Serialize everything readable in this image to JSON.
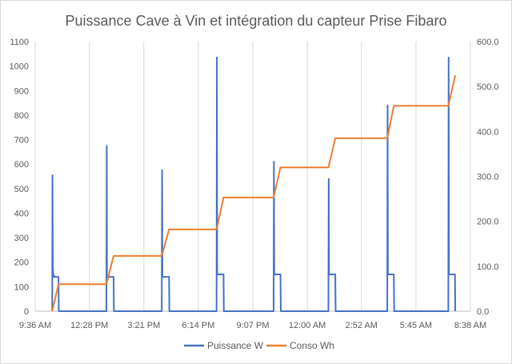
{
  "chart_data": {
    "type": "line",
    "title": "Puissance Cave à Vin et intégration du capteur Prise Fibaro",
    "x_ticks": [
      "9:36 AM",
      "12:28 PM",
      "3:21 PM",
      "6:14 PM",
      "9:07 PM",
      "12:00 AM",
      "2:52 AM",
      "5:45 AM",
      "8:38 AM"
    ],
    "x_range": [
      "9:36 AM",
      "8:38 AM"
    ],
    "y_left": {
      "ticks": [
        "0",
        "100",
        "200",
        "300",
        "400",
        "500",
        "600",
        "700",
        "800",
        "900",
        "1000",
        "1100"
      ],
      "range": [
        0,
        1100
      ]
    },
    "y_right": {
      "ticks": [
        "0.0",
        "100.0",
        "200.0",
        "300.0",
        "400.0",
        "500.0",
        "600.0"
      ],
      "range": [
        0,
        600
      ]
    },
    "grid": "vertical",
    "legend_position": "bottom",
    "series": [
      {
        "name": "Puissance W",
        "axis": "left",
        "color": "#4472C4",
        "x": [
          "10:30 AM",
          "10:31 AM",
          "10:32 AM",
          "10:34 AM",
          "10:36 AM",
          "10:37 AM",
          "10:50 AM",
          "10:51 AM",
          "1:22 PM",
          "1:23 PM",
          "1:24 PM",
          "1:26 PM",
          "1:45 PM",
          "1:46 PM",
          "4:18 PM",
          "4:19 PM",
          "4:20 PM",
          "4:41 PM",
          "4:42 PM",
          "7:12 PM",
          "7:13 PM",
          "7:14 PM",
          "7:34 PM",
          "7:35 PM",
          "10:13 PM",
          "10:14 PM",
          "10:15 PM",
          "10:35 PM",
          "10:36 PM",
          "1:07 AM",
          "1:08 AM",
          "1:09 AM",
          "1:29 AM",
          "1:30 AM",
          "4:14 AM",
          "4:15 AM",
          "4:16 AM",
          "4:35 AM",
          "4:36 AM",
          "7:28 AM",
          "7:29 AM",
          "7:30 AM",
          "7:49 AM",
          "7:50 AM"
        ],
        "y": [
          0,
          555,
          180,
          140,
          145,
          140,
          140,
          0,
          0,
          675,
          140,
          140,
          140,
          0,
          0,
          575,
          140,
          140,
          0,
          0,
          1035,
          150,
          150,
          0,
          0,
          610,
          150,
          150,
          0,
          0,
          540,
          150,
          150,
          0,
          0,
          840,
          150,
          150,
          0,
          0,
          1035,
          150,
          150,
          0
        ]
      },
      {
        "name": "Conso Wh",
        "axis": "right",
        "color": "#ED7D31",
        "x": [
          "10:30 AM",
          "10:50 AM",
          "1:22 PM",
          "1:45 PM",
          "4:18 PM",
          "4:41 PM",
          "7:12 PM",
          "7:34 PM",
          "10:13 PM",
          "10:35 PM",
          "1:07 AM",
          "1:29 AM",
          "4:14 AM",
          "4:35 AM",
          "7:28 AM",
          "7:50 AM"
        ],
        "y": [
          0,
          60,
          60,
          123,
          123,
          182,
          182,
          253,
          253,
          320,
          320,
          385,
          385,
          457,
          457,
          525
        ]
      }
    ]
  }
}
